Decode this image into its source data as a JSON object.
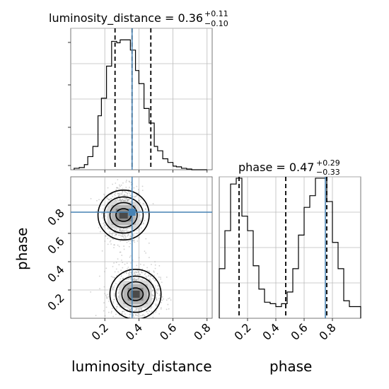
{
  "chart_data": [
    {
      "type": "histogram",
      "panel": "luminosity_distance marginal",
      "title_main": "luminosity_distance = 0.36",
      "title_sup": "+0.11",
      "title_sub": "−0.10",
      "x_range": [
        0.0,
        0.83
      ],
      "x_ticks": [
        0.2,
        0.4,
        0.6,
        0.8
      ],
      "y_range": [
        0.0,
        1.0
      ],
      "y_ticks": [
        0.25,
        0.5,
        0.75,
        1.0
      ],
      "bin_edges": [
        0.02,
        0.05,
        0.08,
        0.1,
        0.13,
        0.16,
        0.18,
        0.21,
        0.24,
        0.27,
        0.29,
        0.32,
        0.35,
        0.38,
        0.4,
        0.43,
        0.46,
        0.49,
        0.51,
        0.54,
        0.57,
        0.6,
        0.62,
        0.65,
        0.68,
        0.71,
        0.74,
        0.77,
        0.8
      ],
      "counts": [
        0.01,
        0.015,
        0.035,
        0.09,
        0.16,
        0.37,
        0.49,
        0.71,
        0.88,
        0.87,
        0.89,
        0.89,
        0.82,
        0.68,
        0.59,
        0.42,
        0.32,
        0.16,
        0.13,
        0.075,
        0.05,
        0.025,
        0.02,
        0.01,
        0.005,
        0.0,
        0.0,
        0.0
      ],
      "quantile_lines": [
        0.26,
        0.36,
        0.47
      ],
      "truth_value": 0.36,
      "grid": true,
      "color_truth": "#4682b4"
    },
    {
      "type": "histogram",
      "panel": "phase marginal",
      "title_main": "phase = 0.47",
      "title_sup": "+0.29",
      "title_sub": "−0.33",
      "x_range": [
        0.0,
        1.0
      ],
      "x_ticks": [
        0.2,
        0.4,
        0.6,
        0.8
      ],
      "y_range": [
        0.0,
        1.0
      ],
      "y_ticks": [
        0.25,
        0.5,
        0.75,
        1.0
      ],
      "bin_edges": [
        0.0,
        0.04,
        0.08,
        0.12,
        0.16,
        0.2,
        0.24,
        0.28,
        0.32,
        0.36,
        0.4,
        0.44,
        0.48,
        0.52,
        0.56,
        0.6,
        0.64,
        0.68,
        0.72,
        0.76,
        0.8,
        0.84,
        0.88,
        0.92,
        0.96,
        1.0
      ],
      "counts": [
        0.34,
        0.6,
        0.92,
        0.96,
        0.7,
        0.6,
        0.36,
        0.2,
        0.11,
        0.1,
        0.08,
        0.1,
        0.18,
        0.34,
        0.57,
        0.76,
        0.84,
        0.96,
        0.96,
        0.8,
        0.52,
        0.34,
        0.12,
        0.08,
        0.08
      ],
      "quantile_lines": [
        0.14,
        0.47,
        0.76
      ],
      "truth_value": 0.75,
      "grid": true,
      "color_truth": "#4682b4"
    },
    {
      "type": "scatter",
      "panel": "2D joint",
      "xlabel": "luminosity_distance",
      "ylabel": "phase",
      "x_range": [
        0.0,
        0.83
      ],
      "y_range": [
        0.0,
        1.0
      ],
      "x_ticks": [
        0.2,
        0.4,
        0.6,
        0.8
      ],
      "y_ticks": [
        0.2,
        0.4,
        0.6,
        0.8
      ],
      "truth": [
        0.36,
        0.75
      ],
      "clusters": [
        {
          "center": [
            0.31,
            0.73
          ],
          "sx": 0.055,
          "sy": 0.1,
          "n": 900
        },
        {
          "center": [
            0.38,
            0.17
          ],
          "sx": 0.07,
          "sy": 0.1,
          "n": 900
        }
      ],
      "contour_levels": [
        [
          0.045,
          0.028
        ],
        [
          0.08,
          0.055
        ],
        [
          0.115,
          0.08
        ],
        [
          0.15,
          0.11
        ]
      ],
      "grid": true,
      "color_truth": "#4682b4"
    }
  ]
}
